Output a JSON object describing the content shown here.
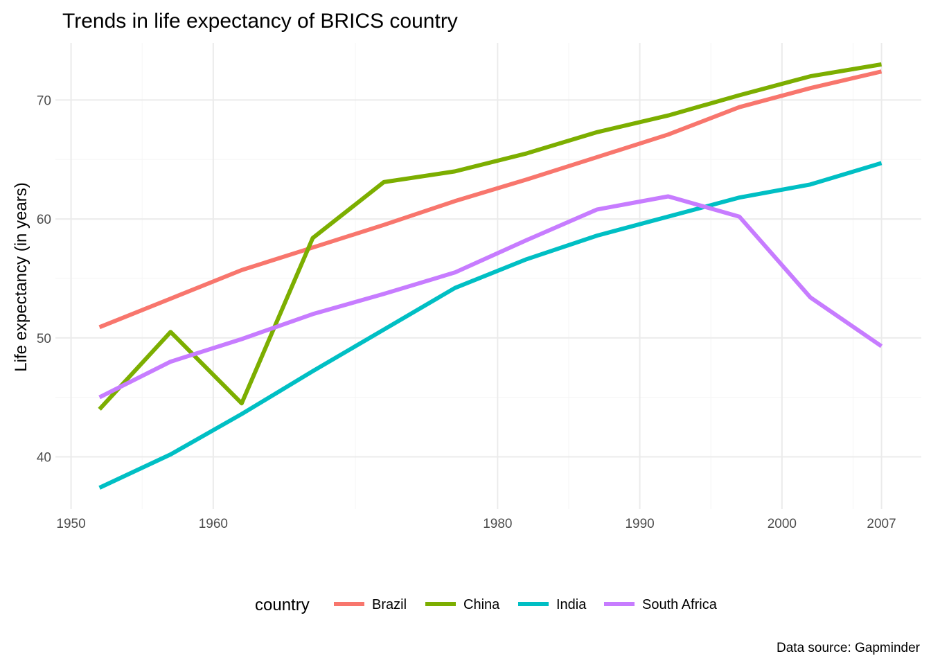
{
  "chart_data": {
    "type": "line",
    "title": "Trends in life expectancy of BRICS country",
    "ylabel": "Life expectancy (in years)",
    "xlabel": "",
    "caption": "Data source: Gapminder",
    "legend_title": "country",
    "legend_position": "bottom",
    "grid": true,
    "xlim": [
      1948.9,
      2009.8
    ],
    "ylim": [
      35.6,
      74.8
    ],
    "x_ticks": [
      1950,
      1960,
      1980,
      1990,
      2000,
      2007
    ],
    "x_tick_labels": [
      "1950",
      "1960",
      "1980",
      "1990",
      "2000",
      "2007"
    ],
    "x_minor_ticks": [
      1955,
      1970,
      1985,
      1995,
      2005
    ],
    "y_ticks": [
      40,
      50,
      60,
      70
    ],
    "y_tick_labels": [
      "40",
      "50",
      "60",
      "70"
    ],
    "y_minor_ticks": [
      45,
      55,
      65
    ],
    "x": [
      1952,
      1957,
      1962,
      1967,
      1972,
      1977,
      1982,
      1987,
      1992,
      1997,
      2002,
      2007
    ],
    "series": [
      {
        "name": "Brazil",
        "color": "#F8766D",
        "values": [
          50.9,
          53.3,
          55.7,
          57.6,
          59.5,
          61.5,
          63.3,
          65.2,
          67.1,
          69.4,
          71.0,
          72.4
        ]
      },
      {
        "name": "China",
        "color": "#7CAE00",
        "values": [
          44.0,
          50.5,
          44.5,
          58.4,
          63.1,
          64.0,
          65.5,
          67.3,
          68.7,
          70.4,
          72.0,
          73.0
        ]
      },
      {
        "name": "India",
        "color": "#00BFC4",
        "values": [
          37.4,
          40.2,
          43.6,
          47.2,
          50.7,
          54.2,
          56.6,
          58.6,
          60.2,
          61.8,
          62.9,
          64.7
        ]
      },
      {
        "name": "South Africa",
        "color": "#C77CFF",
        "values": [
          45.0,
          48.0,
          49.9,
          52.0,
          53.7,
          55.5,
          58.2,
          60.8,
          61.9,
          60.2,
          53.4,
          49.3
        ]
      }
    ]
  }
}
